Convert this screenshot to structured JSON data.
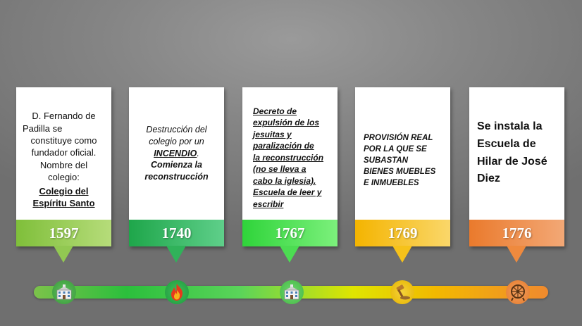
{
  "events": [
    {
      "year": "1597",
      "lines": [
        "D. Fernando de",
        "Padilla se",
        "constituye como",
        "fundador oficial.",
        "Nombre del",
        "colegio:"
      ],
      "link_lines": [
        "Colegio del",
        "Espíritu Santo"
      ]
    },
    {
      "year": "1740",
      "line1": "Destrucción del",
      "line2": "colegio por un",
      "emph": "INCENDIO",
      "emph_suffix": ".",
      "line3": "Comienza la",
      "line4": "reconstrucción"
    },
    {
      "year": "1767",
      "underlined_lines": [
        "Decreto de",
        "expulsión de los",
        "jesuitas y",
        "paralización de",
        "la reconstrucción",
        "(no se lleva a",
        "cabo la iglesia).",
        "Escuela de leer y",
        "escribir"
      ]
    },
    {
      "year": "1769",
      "lines": [
        "PROVISIÓN REAL",
        "POR LA QUE SE",
        "SUBASTAN",
        "BIENES MUEBLES",
        "E INMUEBLES"
      ]
    },
    {
      "year": "1776",
      "lines": [
        "Se instala la",
        "Escuela de",
        "Hilar de José",
        "Diez"
      ]
    }
  ],
  "colors": {
    "band_1597": "#8dc63f",
    "band_1740": "#22b04a",
    "band_1767": "#4ee34e",
    "band_1769": "#f5bf00",
    "band_1776": "#ee7f30"
  },
  "icons": [
    "school-building-icon",
    "fire-icon",
    "school-building-icon",
    "gavel-icon",
    "spinning-wheel-icon"
  ]
}
